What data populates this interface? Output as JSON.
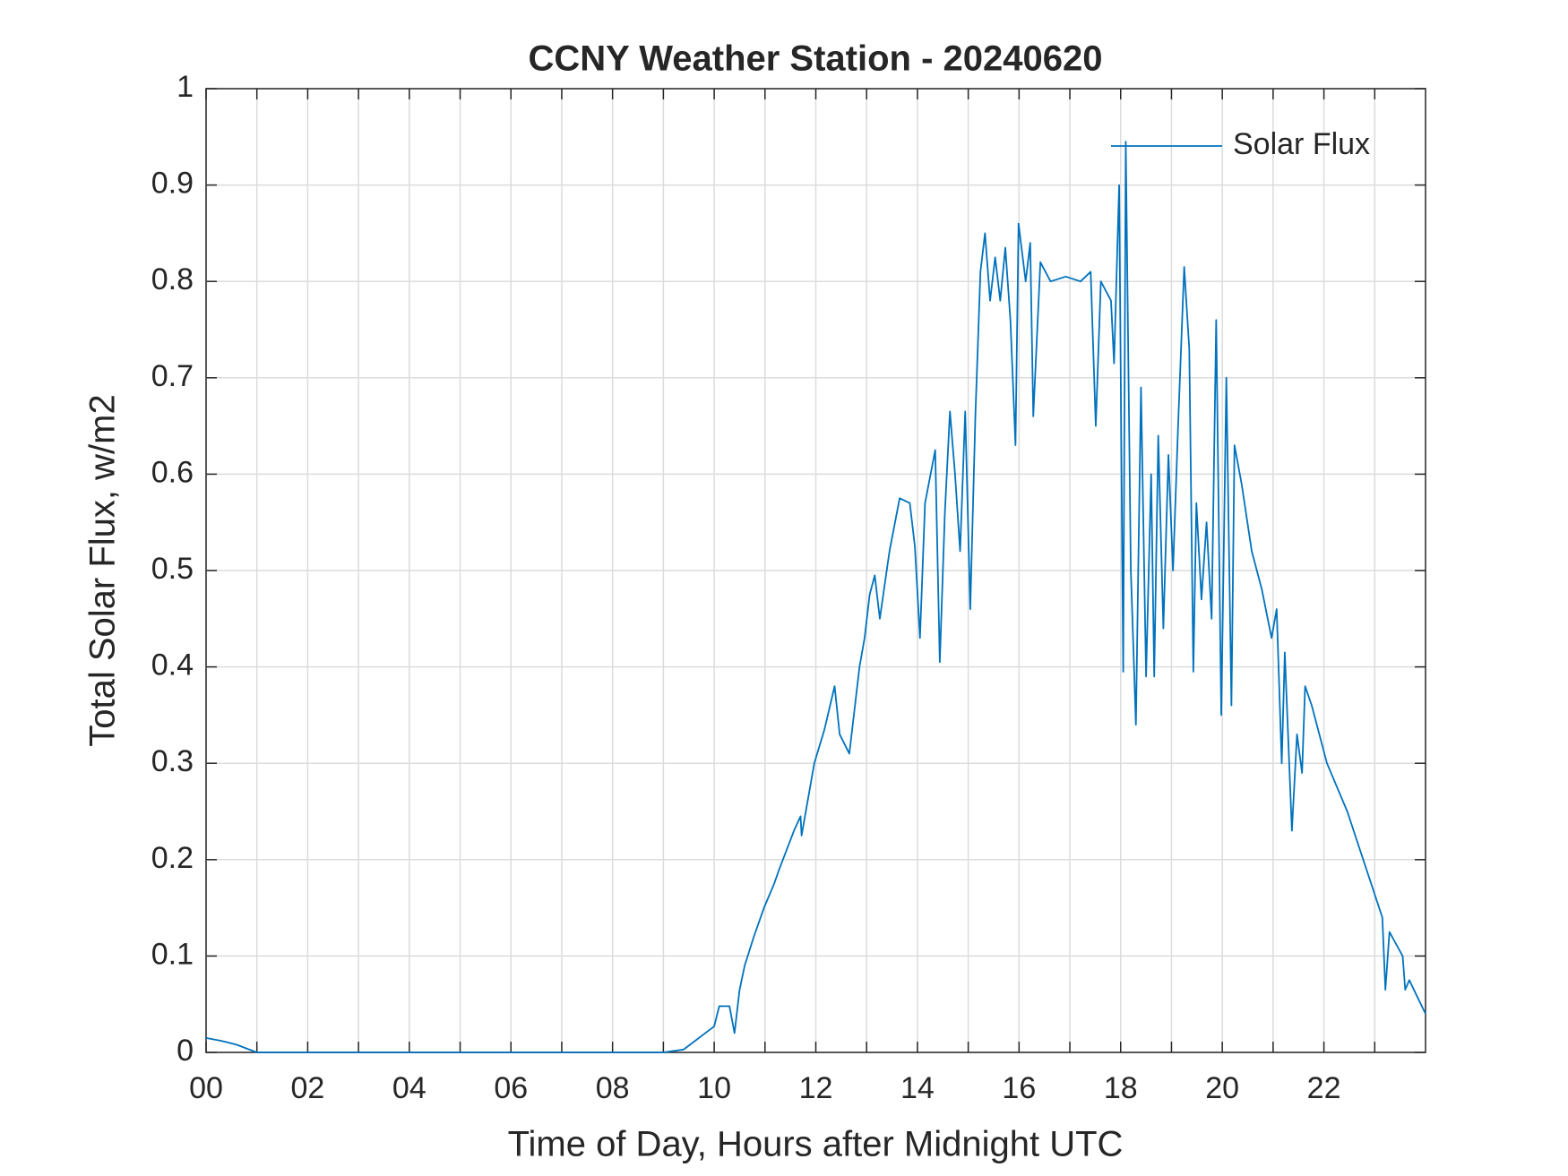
{
  "chart_data": {
    "type": "line",
    "title": "CCNY Weather Station - 20240620",
    "xlabel": "Time of Day, Hours after Midnight UTC",
    "ylabel": "Total Solar Flux, w/m2",
    "xlim": [
      0,
      24
    ],
    "ylim": [
      0,
      1
    ],
    "xticks": [
      {
        "value": 0,
        "label": "00"
      },
      {
        "value": 2,
        "label": "02"
      },
      {
        "value": 4,
        "label": "04"
      },
      {
        "value": 6,
        "label": "06"
      },
      {
        "value": 8,
        "label": "08"
      },
      {
        "value": 10,
        "label": "10"
      },
      {
        "value": 12,
        "label": "12"
      },
      {
        "value": 14,
        "label": "14"
      },
      {
        "value": 16,
        "label": "16"
      },
      {
        "value": 18,
        "label": "18"
      },
      {
        "value": 20,
        "label": "20"
      },
      {
        "value": 22,
        "label": "22"
      }
    ],
    "xminorticks": [
      1,
      3,
      5,
      7,
      9,
      11,
      13,
      15,
      17,
      19,
      21,
      23
    ],
    "yticks": [
      0,
      0.1,
      0.2,
      0.3,
      0.4,
      0.5,
      0.6,
      0.7,
      0.8,
      0.9,
      1
    ],
    "grid": true,
    "legend": "upper right",
    "x": [
      0,
      0.3,
      0.6,
      0.9,
      1.0,
      9.0,
      9.4,
      10.0,
      10.1,
      10.3,
      10.4,
      10.5,
      10.6,
      10.78,
      10.98,
      11.18,
      11.28,
      11.57,
      11.7,
      11.72,
      11.97,
      12.17,
      12.37,
      12.47,
      12.66,
      12.86,
      12.96,
      13.06,
      13.16,
      13.26,
      13.45,
      13.65,
      13.85,
      13.95,
      14.05,
      14.15,
      14.35,
      14.44,
      14.54,
      14.64,
      14.74,
      14.84,
      14.94,
      15.04,
      15.14,
      15.24,
      15.33,
      15.43,
      15.53,
      15.63,
      15.73,
      15.83,
      15.93,
      15.99,
      16.13,
      16.22,
      16.28,
      16.42,
      16.62,
      16.92,
      17.21,
      17.41,
      17.51,
      17.61,
      17.81,
      17.87,
      17.97,
      18.05,
      18.1,
      18.2,
      18.3,
      18.4,
      18.5,
      18.6,
      18.66,
      18.74,
      18.84,
      18.94,
      19.03,
      19.13,
      19.25,
      19.35,
      19.43,
      19.49,
      19.59,
      19.69,
      19.79,
      19.88,
      19.98,
      20.08,
      20.18,
      20.24,
      20.38,
      20.58,
      20.78,
      20.97,
      21.07,
      21.17,
      21.23,
      21.37,
      21.47,
      21.57,
      21.63,
      21.76,
      22.06,
      22.46,
      23.15,
      23.21,
      23.29,
      23.55,
      23.6,
      23.68,
      24.0
    ],
    "series": [
      {
        "name": "Solar Flux",
        "color": "#0072bd",
        "values": [
          0.015,
          0.012,
          0.008,
          0.002,
          0,
          0,
          0.003,
          0.027,
          0.048,
          0.048,
          0.02,
          0.065,
          0.09,
          0.12,
          0.15,
          0.175,
          0.19,
          0.23,
          0.245,
          0.225,
          0.3,
          0.335,
          0.38,
          0.33,
          0.31,
          0.4,
          0.43,
          0.475,
          0.495,
          0.45,
          0.52,
          0.575,
          0.57,
          0.525,
          0.43,
          0.57,
          0.625,
          0.405,
          0.56,
          0.665,
          0.6,
          0.52,
          0.665,
          0.46,
          0.66,
          0.81,
          0.85,
          0.78,
          0.825,
          0.78,
          0.835,
          0.76,
          0.63,
          0.86,
          0.8,
          0.84,
          0.66,
          0.82,
          0.8,
          0.805,
          0.8,
          0.81,
          0.65,
          0.8,
          0.78,
          0.715,
          0.9,
          0.395,
          0.945,
          0.5,
          0.34,
          0.69,
          0.39,
          0.6,
          0.39,
          0.64,
          0.44,
          0.62,
          0.5,
          0.65,
          0.815,
          0.73,
          0.395,
          0.57,
          0.47,
          0.55,
          0.45,
          0.76,
          0.35,
          0.7,
          0.36,
          0.63,
          0.59,
          0.52,
          0.48,
          0.43,
          0.46,
          0.3,
          0.415,
          0.23,
          0.33,
          0.29,
          0.38,
          0.36,
          0.3,
          0.25,
          0.14,
          0.065,
          0.125,
          0.1,
          0.065,
          0.075,
          0.04
        ]
      }
    ]
  }
}
